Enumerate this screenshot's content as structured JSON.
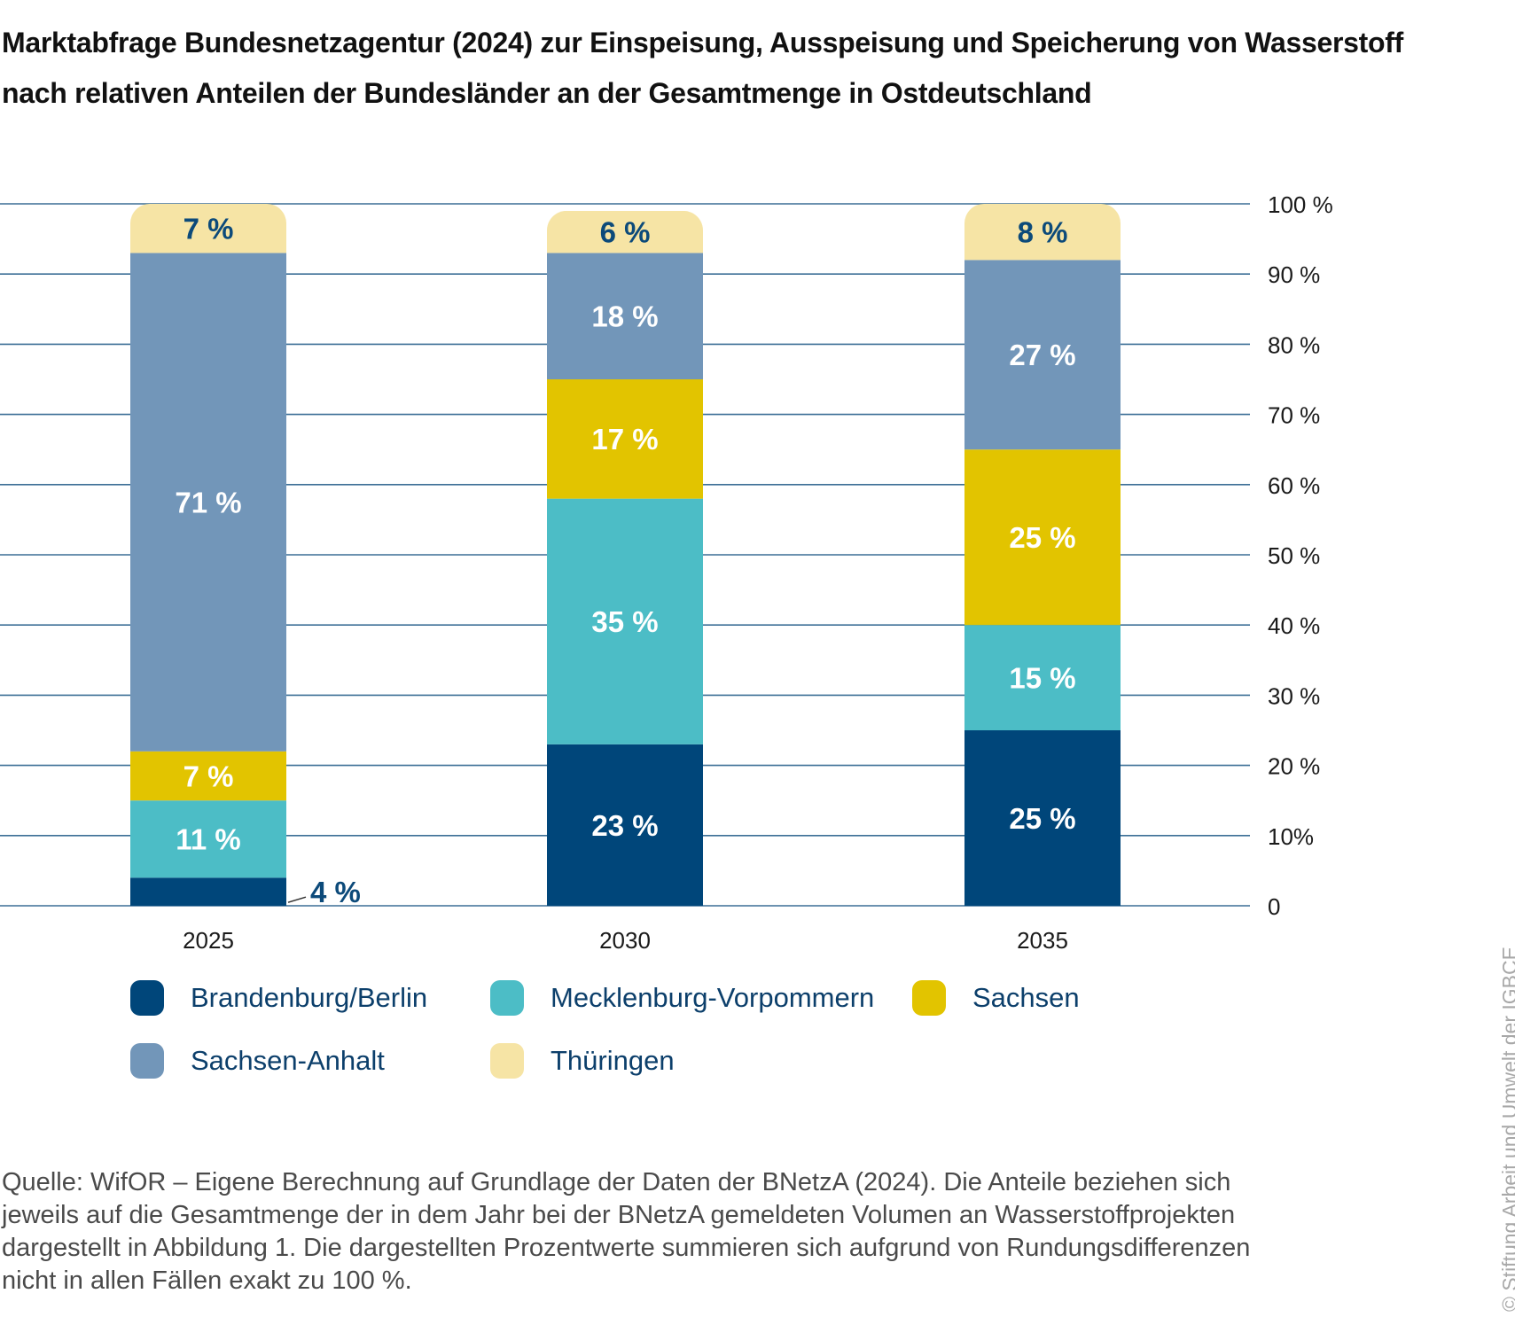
{
  "title": {
    "line1": "Marktabfrage Bundesnetzagentur (2024) zur Einspeisung, Ausspeisung und Speicherung von Wasserstoff",
    "line2": "nach relativen Anteilen der Bundesländer an der Gesamtmenge in Ostdeutschland"
  },
  "chart_data": {
    "type": "bar",
    "stacked": true,
    "title": "Marktabfrage Bundesnetzagentur (2024) zur Einspeisung, Ausspeisung und Speicherung von Wasserstoff nach relativen Anteilen der Bundesländer an der Gesamtmenge in Ostdeutschland",
    "xlabel": "",
    "ylabel": "",
    "ylim": [
      0,
      100
    ],
    "y_axis_position": "right",
    "y_ticks": [
      0,
      10,
      20,
      30,
      40,
      50,
      60,
      70,
      80,
      90,
      100
    ],
    "y_tick_labels": [
      "0",
      "10%",
      "20 %",
      "30 %",
      "40 %",
      "50 %",
      "60 %",
      "70 %",
      "80 %",
      "90 %",
      "100 %"
    ],
    "grid": true,
    "categories": [
      "2025",
      "2030",
      "2035"
    ],
    "series": [
      {
        "name": "Brandenburg/Berlin",
        "color": "#00467a",
        "label_color": "#ffffff",
        "values": [
          4,
          23,
          25
        ],
        "labels": [
          "4 %",
          "23 %",
          "25 %"
        ]
      },
      {
        "name": "Mecklenburg-Vorpommern",
        "color": "#4cbdc6",
        "label_color": "#ffffff",
        "values": [
          11,
          35,
          15
        ],
        "labels": [
          "11 %",
          "35 %",
          "15 %"
        ]
      },
      {
        "name": "Sachsen",
        "color": "#e2c400",
        "label_color": "#ffffff",
        "values": [
          7,
          17,
          25
        ],
        "labels": [
          "7 %",
          "17 %",
          "25 %"
        ]
      },
      {
        "name": "Sachsen-Anhalt",
        "color": "#7296b9",
        "label_color": "#ffffff",
        "values": [
          71,
          18,
          27
        ],
        "labels": [
          "71 %",
          "18 %",
          "27 %"
        ]
      },
      {
        "name": "Thüringen",
        "color": "#f6e4a5",
        "label_color": "#0c4a7a",
        "values": [
          7,
          6,
          8
        ],
        "labels": [
          "7 %",
          "6 %",
          "8 %"
        ]
      }
    ],
    "annotations": [
      {
        "category": "2025",
        "series": "Brandenburg/Berlin",
        "text": "4 %",
        "placement": "outside-right-with-leader"
      }
    ],
    "legend_position": "bottom"
  },
  "colors": {
    "gridline": "#3c6f96",
    "axis_text": "#1a1a1a",
    "legend_text": "#0c3f6b",
    "source_text": "#4a4a4a",
    "copyright_text": "#a8a8a8"
  },
  "legend": {
    "items": [
      {
        "label": "Brandenburg/Berlin",
        "color": "#00467a"
      },
      {
        "label": "Mecklenburg-Vorpommern",
        "color": "#4cbdc6"
      },
      {
        "label": "Sachsen",
        "color": "#e2c400"
      },
      {
        "label": "Sachsen-Anhalt",
        "color": "#7296b9"
      },
      {
        "label": "Thüringen",
        "color": "#f6e4a5"
      }
    ]
  },
  "source": {
    "lines": [
      "Quelle: WifOR – Eigene Berechnung auf Grundlage der Daten der BNetzA (2024). Die Anteile beziehen sich",
      "jeweils auf die Gesamtmenge der in dem Jahr bei der BNetzA gemeldeten Volumen an Wasserstoffprojekten",
      "dargestellt in Abbildung 1. Die dargestellten Prozentwerte summieren sich aufgrund von Rundungsdifferenzen",
      "nicht in allen Fällen exakt zu 100 %."
    ]
  },
  "copyright": "© Stiftung Arbeit und Umwelt der IGBCE"
}
